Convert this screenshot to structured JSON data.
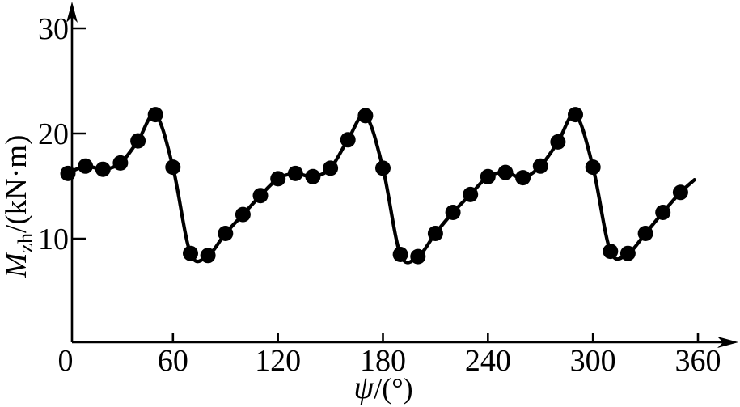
{
  "figure": {
    "background": "#ffffff",
    "ink_color": "#000000"
  },
  "chart_data": {
    "type": "line",
    "title": "",
    "xlabel": "ψ/(°)",
    "ylabel": "M_zh/(kN·m)",
    "xlabel_parts": {
      "symbol": "ψ",
      "rest": "/(°)"
    },
    "ylabel_parts": {
      "symbol": "M",
      "subscript": "zh",
      "rest": "/(kN·m)"
    },
    "x_ticks": [
      0,
      60,
      120,
      180,
      240,
      300,
      360
    ],
    "y_ticks": [
      10,
      20,
      30
    ],
    "xlim": [
      0,
      375
    ],
    "ylim": [
      0,
      32
    ],
    "grid": false,
    "legend_position": "none",
    "marker": "filled-circle",
    "line_color": "#000000",
    "marker_color": "#000000",
    "series": [
      {
        "name": "Mzh",
        "x": [
          0,
          10,
          20,
          30,
          40,
          50,
          60,
          70,
          80,
          90,
          100,
          110,
          120,
          130,
          140,
          150,
          160,
          170,
          180,
          190,
          200,
          210,
          220,
          230,
          240,
          250,
          260,
          270,
          280,
          290,
          300,
          310,
          320,
          330,
          340,
          350
        ],
        "y": [
          16.2,
          16.9,
          16.6,
          17.2,
          19.3,
          21.8,
          16.8,
          8.6,
          8.4,
          10.5,
          12.3,
          14.1,
          15.7,
          16.2,
          15.9,
          16.7,
          19.4,
          21.7,
          16.7,
          8.5,
          8.3,
          10.5,
          12.5,
          14.2,
          15.9,
          16.3,
          15.8,
          16.9,
          19.2,
          21.8,
          16.8,
          8.8,
          8.6,
          10.5,
          12.5,
          14.4
        ]
      }
    ],
    "line_extension": {
      "x": 358,
      "y": 15.6
    }
  }
}
